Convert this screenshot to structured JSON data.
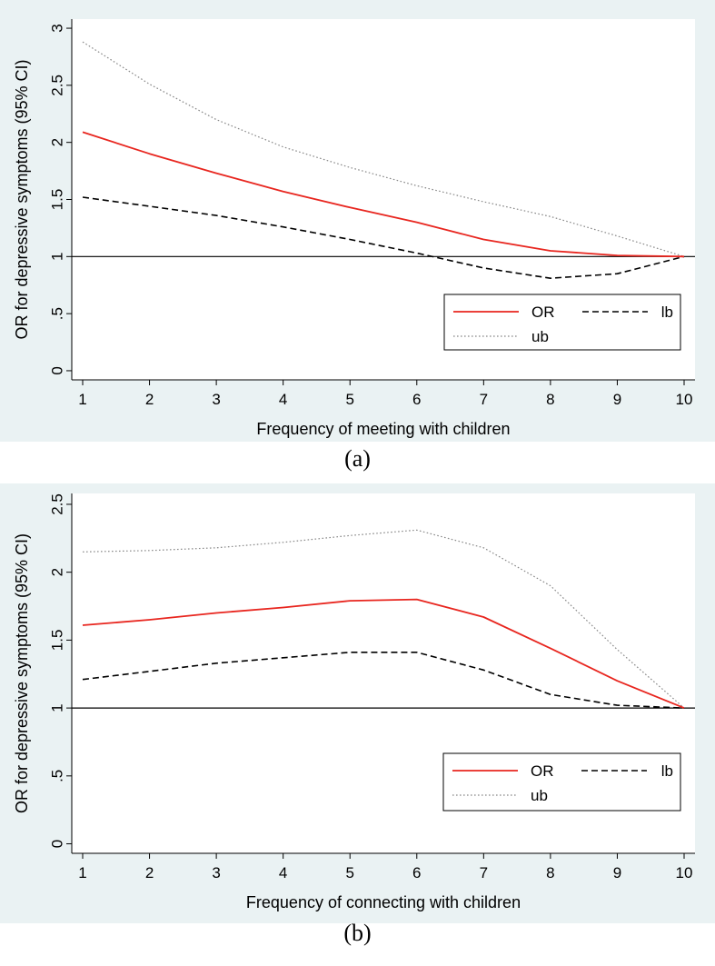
{
  "chart_data": [
    {
      "type": "line",
      "panel_label": "(a)",
      "xlabel": "Frequency of meeting with children",
      "ylabel": "OR for depressive symptoms (95% CI)",
      "x": [
        1,
        2,
        3,
        4,
        5,
        6,
        7,
        8,
        9,
        10
      ],
      "xticks": [
        "1",
        "2",
        "3",
        "4",
        "5",
        "6",
        "7",
        "8",
        "9",
        "10"
      ],
      "yticks": [
        0,
        0.5,
        1,
        1.5,
        2,
        2.5,
        3
      ],
      "ytick_labels": [
        "0",
        ".5",
        "1",
        "1.5",
        "2",
        "2.5",
        "3"
      ],
      "ylim": [
        -0.08,
        3.08
      ],
      "reference_line": 1,
      "series": [
        {
          "name": "OR",
          "color": "#e8261f",
          "style": "solid",
          "values": [
            2.09,
            1.9,
            1.73,
            1.57,
            1.43,
            1.3,
            1.15,
            1.05,
            1.01,
            1.0
          ]
        },
        {
          "name": "lb",
          "color": "#000000",
          "style": "dashed",
          "values": [
            1.52,
            1.44,
            1.36,
            1.26,
            1.15,
            1.03,
            0.9,
            0.81,
            0.85,
            1.0
          ]
        },
        {
          "name": "ub",
          "color": "#888888",
          "style": "dotted",
          "values": [
            2.88,
            2.51,
            2.2,
            1.96,
            1.78,
            1.62,
            1.48,
            1.35,
            1.18,
            1.0
          ]
        }
      ],
      "legend": [
        {
          "label": "OR",
          "series": 0
        },
        {
          "label": "lb",
          "series": 1
        },
        {
          "label": "ub",
          "series": 2
        }
      ]
    },
    {
      "type": "line",
      "panel_label": "(b)",
      "xlabel": "Frequency of connecting with children",
      "ylabel": "OR for depressive symptoms (95% CI)",
      "x": [
        1,
        2,
        3,
        4,
        5,
        6,
        7,
        8,
        9,
        10
      ],
      "xticks": [
        "1",
        "2",
        "3",
        "4",
        "5",
        "6",
        "7",
        "8",
        "9",
        "10"
      ],
      "yticks": [
        0,
        0.5,
        1,
        1.5,
        2,
        2.5
      ],
      "ytick_labels": [
        "0",
        ".5",
        "1",
        "1.5",
        "2",
        "2.5"
      ],
      "ylim": [
        -0.07,
        2.58
      ],
      "reference_line": 1,
      "series": [
        {
          "name": "OR",
          "color": "#e8261f",
          "style": "solid",
          "values": [
            1.61,
            1.65,
            1.7,
            1.74,
            1.79,
            1.8,
            1.67,
            1.44,
            1.2,
            1.0
          ]
        },
        {
          "name": "lb",
          "color": "#000000",
          "style": "dashed",
          "values": [
            1.21,
            1.27,
            1.33,
            1.37,
            1.41,
            1.41,
            1.28,
            1.1,
            1.02,
            1.0
          ]
        },
        {
          "name": "ub",
          "color": "#888888",
          "style": "dotted",
          "values": [
            2.15,
            2.16,
            2.18,
            2.22,
            2.27,
            2.31,
            2.18,
            1.9,
            1.43,
            1.0
          ]
        }
      ],
      "legend": [
        {
          "label": "OR",
          "series": 0
        },
        {
          "label": "lb",
          "series": 1
        },
        {
          "label": "ub",
          "series": 2
        }
      ]
    }
  ]
}
